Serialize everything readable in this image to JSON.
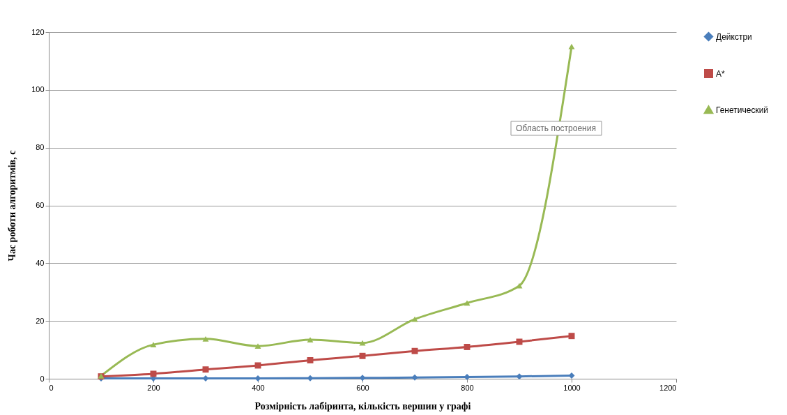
{
  "chart_data": {
    "type": "line",
    "xlabel": "Розмірність  лабіринта, кількість  вершин у графі",
    "ylabel": "Час роботи алгоритмів, с",
    "x": [
      100,
      200,
      300,
      400,
      500,
      600,
      700,
      800,
      900,
      1000
    ],
    "series": [
      {
        "name": "Дейкстри",
        "color": "#4a7ebb",
        "marker": "diamond",
        "values": [
          0.1,
          0.1,
          0.1,
          0.1,
          0.2,
          0.3,
          0.4,
          0.6,
          0.8,
          1.1
        ]
      },
      {
        "name": "A*",
        "color": "#be4b48",
        "marker": "square",
        "values": [
          0.8,
          1.7,
          3.2,
          4.6,
          6.4,
          7.9,
          9.6,
          11.0,
          12.8,
          14.8
        ]
      },
      {
        "name": "Генетический",
        "color": "#98b954",
        "marker": "triangle",
        "values": [
          1.0,
          11.8,
          13.8,
          11.3,
          13.5,
          12.4,
          20.6,
          26.2,
          32.2,
          115
        ]
      }
    ],
    "xlim": [
      0,
      1200
    ],
    "xticks": [
      0,
      200,
      400,
      600,
      800,
      1000,
      1200
    ],
    "ylim": [
      0,
      120
    ],
    "yticks": [
      0,
      20,
      40,
      60,
      80,
      100,
      120
    ],
    "grid": "y",
    "legend": "right",
    "annotations": [
      "Область построения"
    ]
  }
}
